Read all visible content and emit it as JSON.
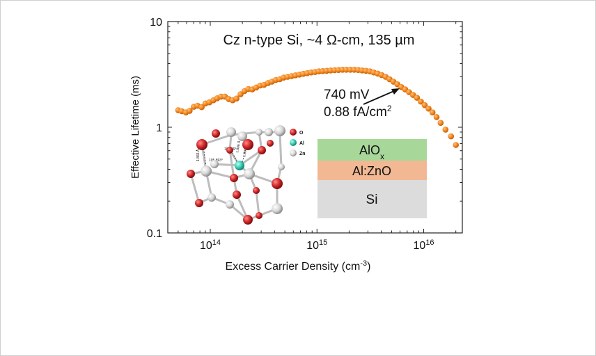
{
  "chart_data": {
    "type": "scatter",
    "title": "Cz n-type Si, ~4 Ω-cm, 135 µm",
    "xlabel": "Excess Carrier Density (cm",
    "xlabel_sup": "-3",
    "xlabel_end": ")",
    "ylabel": "Effective Lifetime (ms)",
    "x_scale": "log",
    "y_scale": "log",
    "xlim": [
      40000000000000.0,
      2.3e+16
    ],
    "ylim": [
      0.1,
      10
    ],
    "x_ticks": [
      {
        "value": 100000000000000.0,
        "base": "10",
        "exp": "14"
      },
      {
        "value": 1000000000000000.0,
        "base": "10",
        "exp": "15"
      },
      {
        "value": 1e+16,
        "base": "10",
        "exp": "16"
      }
    ],
    "y_ticks": [
      {
        "value": 10,
        "label": "10"
      },
      {
        "value": 1,
        "label": "1"
      },
      {
        "value": 0.1,
        "label": "0.1"
      }
    ],
    "grid": false,
    "marker_color": "#f07f16",
    "series": [
      {
        "points": [
          [
            50000000000000.0,
            1.45
          ],
          [
            54000000000000.0,
            1.42
          ],
          [
            59000000000000.0,
            1.38
          ],
          [
            64000000000000.0,
            1.43
          ],
          [
            70000000000000.0,
            1.56
          ],
          [
            76000000000000.0,
            1.6
          ],
          [
            83000000000000.0,
            1.55
          ],
          [
            90000000000000.0,
            1.68
          ],
          [
            98000000000000.0,
            1.72
          ],
          [
            107000000000000.0,
            1.8
          ],
          [
            116000000000000.0,
            1.88
          ],
          [
            126000000000000.0,
            1.95
          ],
          [
            137000000000000.0,
            1.95
          ],
          [
            149000000000000.0,
            1.85
          ],
          [
            162000000000000.0,
            1.8
          ],
          [
            176000000000000.0,
            1.87
          ],
          [
            192000000000000.0,
            2.05
          ],
          [
            209000000000000.0,
            2.2
          ],
          [
            227000000000000.0,
            2.3
          ],
          [
            247000000000000.0,
            2.28
          ],
          [
            269000000000000.0,
            2.38
          ],
          [
            293000000000000.0,
            2.48
          ],
          [
            319000000000000.0,
            2.52
          ],
          [
            347000000000000.0,
            2.62
          ],
          [
            378000000000000.0,
            2.7
          ],
          [
            411000000000000.0,
            2.8
          ],
          [
            447000000000000.0,
            2.85
          ],
          [
            487000000000000.0,
            2.95
          ],
          [
            530000000000000.0,
            3.0
          ],
          [
            577000000000000.0,
            3.05
          ],
          [
            628000000000000.0,
            3.1
          ],
          [
            683000000000000.0,
            3.15
          ],
          [
            743000000000000.0,
            3.2
          ],
          [
            809000000000000.0,
            3.25
          ],
          [
            880000000000000.0,
            3.3
          ],
          [
            958000000000000.0,
            3.33
          ],
          [
            1040000000000000.0,
            3.38
          ],
          [
            1130000000000000.0,
            3.4
          ],
          [
            1230000000000000.0,
            3.42
          ],
          [
            1340000000000000.0,
            3.45
          ],
          [
            1460000000000000.0,
            3.47
          ],
          [
            1590000000000000.0,
            3.48
          ],
          [
            1730000000000000.0,
            3.5
          ],
          [
            1880000000000000.0,
            3.5
          ],
          [
            2050000000000000.0,
            3.5
          ],
          [
            2230000000000000.0,
            3.5
          ],
          [
            2430000000000000.0,
            3.48
          ],
          [
            2640000000000000.0,
            3.45
          ],
          [
            2870000000000000.0,
            3.42
          ],
          [
            3130000000000000.0,
            3.38
          ],
          [
            3400000000000000.0,
            3.3
          ],
          [
            3700000000000000.0,
            3.22
          ],
          [
            4030000000000000.0,
            3.12
          ],
          [
            4390000000000000.0,
            3.0
          ],
          [
            4780000000000000.0,
            2.85
          ],
          [
            5200000000000000.0,
            2.7
          ],
          [
            5660000000000000.0,
            2.55
          ],
          [
            6160000000000000.0,
            2.4
          ],
          [
            6700000000000000.0,
            2.28
          ],
          [
            7290000000000000.0,
            2.15
          ],
          [
            7940000000000000.0,
            2.02
          ],
          [
            8640000000000000.0,
            1.9
          ],
          [
            9400000000000000.0,
            1.75
          ],
          [
            1.02e+16,
            1.62
          ],
          [
            1.11e+16,
            1.5
          ],
          [
            1.21e+16,
            1.38
          ],
          [
            1.32e+16,
            1.25
          ],
          [
            1.44e+16,
            1.1
          ],
          [
            1.6e+16,
            0.95
          ],
          [
            1.8e+16,
            0.82
          ],
          [
            2e+16,
            0.68
          ]
        ]
      }
    ],
    "annotations": [
      {
        "line1": "740 mV",
        "line2_prefix": "0.88 fA/cm",
        "line2_sup": "2",
        "arrow_to": [
          8000000000000000.0,
          2.25
        ]
      }
    ],
    "stack_layers": [
      {
        "label": "AlO",
        "sub": "x",
        "color": "#a8d79a"
      },
      {
        "label": "Al:ZnO",
        "sub": "",
        "color": "#f2b894"
      },
      {
        "label": "Si",
        "sub": "",
        "color": "#dcdcdc"
      }
    ],
    "structure_inset": {
      "legend": [
        {
          "label": "O",
          "color": "#d42a2a"
        },
        {
          "label": "Al",
          "color": "#35c9b0"
        },
        {
          "label": "Zn",
          "color": "#d4d4d4"
        }
      ],
      "labels": [
        "105.893°",
        "108.66°",
        "1.866 Å",
        "1.806 Å",
        "1.901 Å"
      ]
    }
  }
}
